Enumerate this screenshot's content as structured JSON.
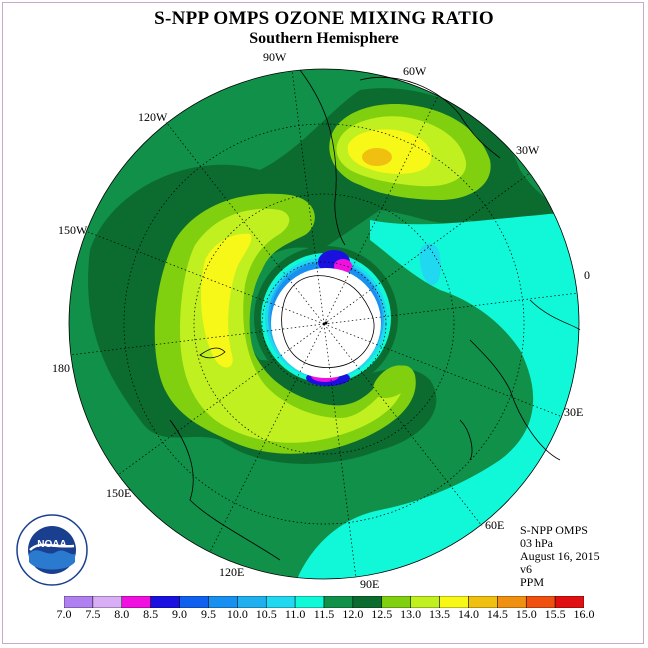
{
  "title": "S-NPP OMPS OZONE MIXING RATIO",
  "subtitle": "Southern Hemisphere",
  "longitude_labels": {
    "w90": "90W",
    "w60": "60W",
    "w120": "120W",
    "w30": "30W",
    "w150": "150W",
    "zero": "0",
    "d180": "180",
    "e30": "30E",
    "e150": "150E",
    "e60": "60E",
    "e120": "120E",
    "e90": "90E"
  },
  "info": {
    "instrument": "S-NPP OMPS",
    "level": "03 hPa",
    "date": "August 16, 2015",
    "version": "v6",
    "units": "PPM"
  },
  "logo": {
    "text": "NOAA",
    "ring_text": "NATIONAL OCEANIC AND ATMOSPHERIC ADMINISTRATION · U.S. DEPARTMENT OF COMMERCE",
    "icon": "noaa-logo-icon"
  },
  "colorbar": {
    "labels": [
      "7.0",
      "7.5",
      "8.0",
      "8.5",
      "9.0",
      "9.5",
      "10.0",
      "10.5",
      "11.0",
      "11.5",
      "12.0",
      "12.5",
      "13.0",
      "13.5",
      "14.0",
      "14.5",
      "15.0",
      "15.5",
      "16.0"
    ],
    "colors": [
      "#b07ff0",
      "#d8aef5",
      "#f010e0",
      "#1a10e0",
      "#1060f0",
      "#1890f0",
      "#20b0f0",
      "#20d8f0",
      "#10f8d8",
      "#109048",
      "#0c6c30",
      "#80d010",
      "#c0f020",
      "#f8f818",
      "#f0c010",
      "#f09010",
      "#f05010",
      "#e01010",
      "#a06040"
    ]
  },
  "map_colors": {
    "polar_night": "#ffffff",
    "ppm_11_0": "#10f8d8",
    "ppm_11_5": "#109048",
    "ppm_12_0": "#0c6c30",
    "ppm_12_5": "#80d010",
    "ppm_13_0": "#c0f020",
    "ppm_13_5": "#f8f818",
    "ppm_14_0": "#f0c010"
  }
}
